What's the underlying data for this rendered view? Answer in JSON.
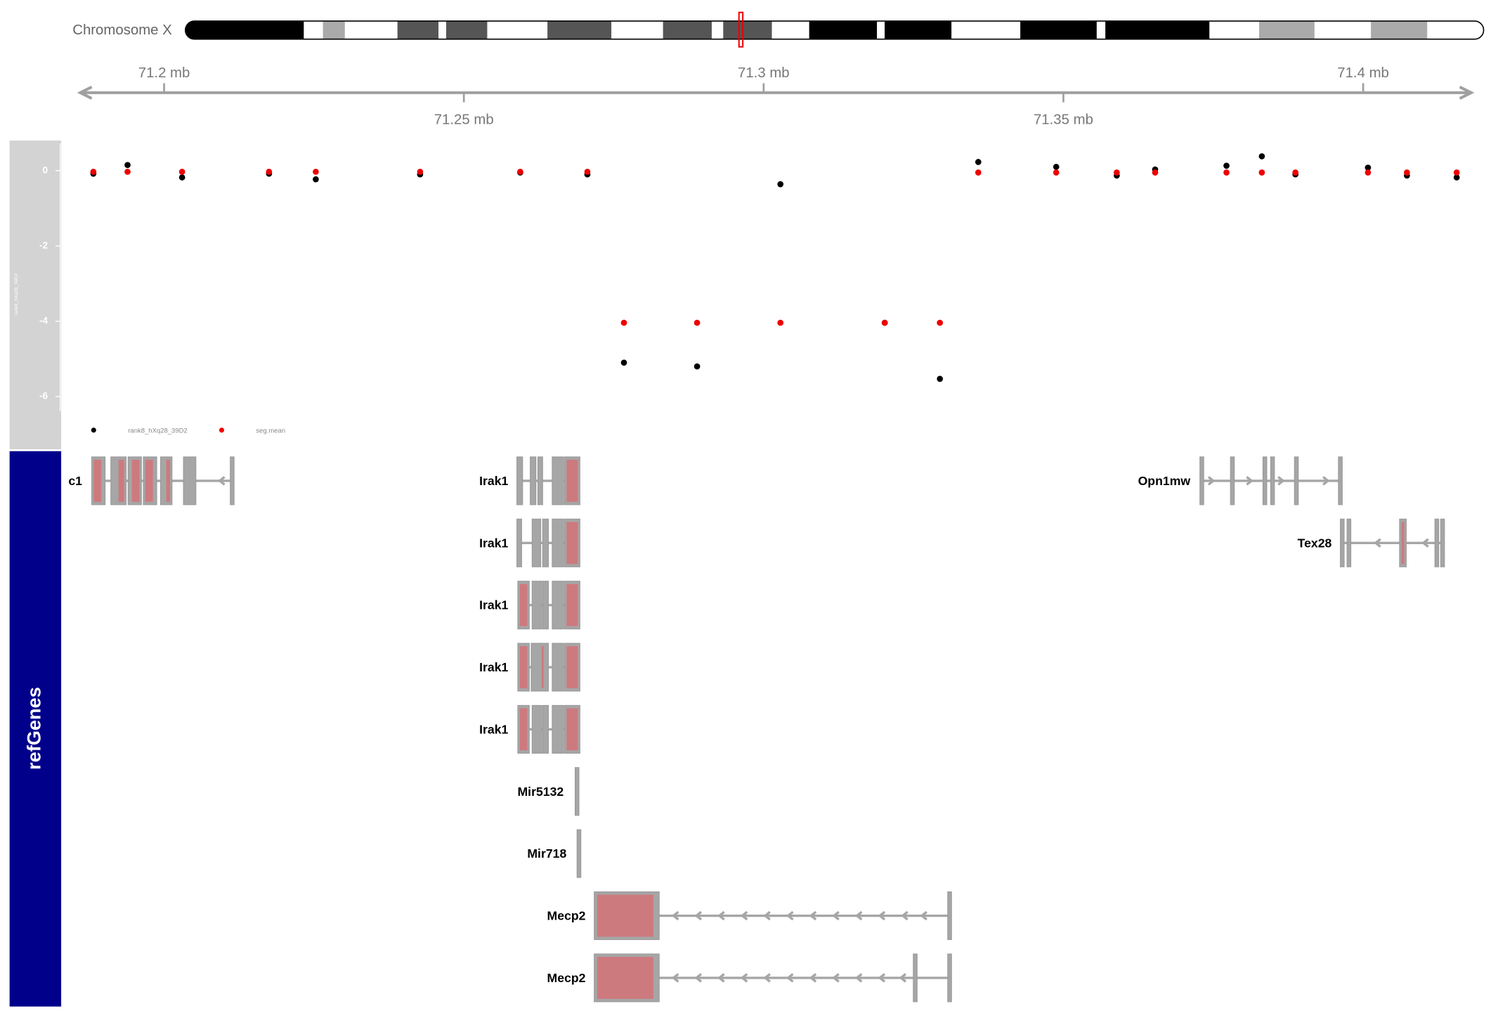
{
  "ideogram": {
    "title": "Chromosome X"
  },
  "chart_data": {
    "type": "scatter",
    "ylabel": "rank8_hXq28_39D2",
    "x": [
      71.1882,
      71.1939,
      71.203,
      71.2175,
      71.2253,
      71.2427,
      71.2594,
      71.2706,
      71.2767,
      71.2889,
      71.3028,
      71.3202,
      71.3294,
      71.3358,
      71.3488,
      71.3589,
      71.3653,
      71.3772,
      71.3831,
      71.3887,
      71.4008,
      71.4073,
      71.4156
    ],
    "series": [
      {
        "name": "rank8_hXq28_39D2",
        "color": "#000000",
        "values": [
          -0.08,
          0.15,
          -0.18,
          -0.08,
          -0.23,
          -0.1,
          -0.05,
          -0.1,
          -5.1,
          -5.2,
          -0.36,
          -4.04,
          -5.53,
          0.23,
          0.1,
          -0.13,
          0.03,
          0.13,
          0.38,
          -0.1,
          0.08,
          -0.13,
          -0.18
        ]
      },
      {
        "name": "seg.mean",
        "color": "#ee0000",
        "values": [
          -0.03,
          -0.03,
          -0.03,
          -0.03,
          -0.03,
          -0.03,
          -0.03,
          -0.03,
          -4.04,
          -4.04,
          -4.04,
          -4.04,
          -4.04,
          -0.05,
          -0.05,
          -0.05,
          -0.05,
          -0.05,
          -0.05,
          -0.05,
          -0.05,
          -0.05,
          -0.05
        ]
      }
    ],
    "xlim": [
      71.1857,
      71.4185
    ],
    "xticks": [
      {
        "value": 71.2,
        "label": "71.2 mb"
      },
      {
        "value": 71.25,
        "label": "71.25 mb"
      },
      {
        "value": 71.3,
        "label": "71.3 mb"
      },
      {
        "value": 71.35,
        "label": "71.35 mb"
      },
      {
        "value": 71.4,
        "label": "71.4 mb"
      }
    ],
    "ylim": [
      -7.4,
      0.8
    ],
    "yticks": [
      0,
      -2,
      -4,
      -6
    ],
    "legend": "bottom-left"
  },
  "gene_track": {
    "title": "refGenes",
    "labels": [
      "c1",
      "Irak1",
      "Irak1",
      "Irak1",
      "Irak1",
      "Irak1",
      "Opn1mw",
      "Tex28",
      "Mir5132",
      "Mir718",
      "Mecp2",
      "Mecp2"
    ]
  }
}
